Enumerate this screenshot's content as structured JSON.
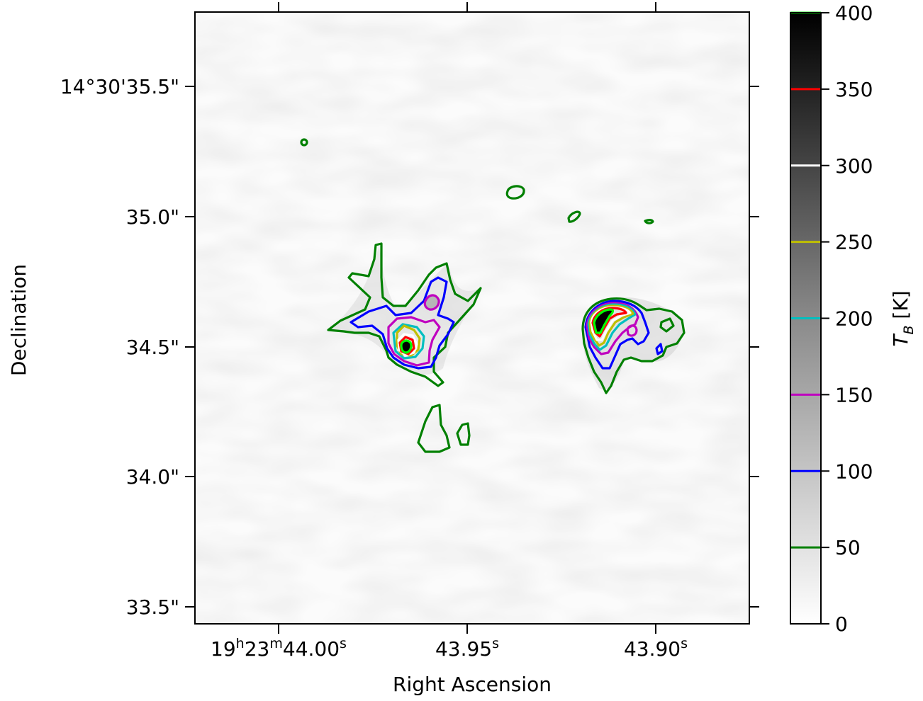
{
  "chart_data": {
    "type": "heatmap",
    "title": "",
    "xlabel": "Right Ascension",
    "ylabel": "Declination",
    "x_ticks": [
      {
        "value": 44.0,
        "label_parts": [
          "19",
          "h",
          "23",
          "m",
          "44.00",
          "s"
        ]
      },
      {
        "value": 43.95,
        "label_parts": [
          "",
          "",
          "",
          "",
          "43.95",
          "s"
        ]
      },
      {
        "value": 43.9,
        "label_parts": [
          "",
          "",
          "",
          "",
          "43.90",
          "s"
        ]
      }
    ],
    "y_ticks": [
      {
        "value": 35.5,
        "label": "14°30'35.5\""
      },
      {
        "value": 35.0,
        "label": "35.0\""
      },
      {
        "value": 34.5,
        "label": "34.5\""
      },
      {
        "value": 34.0,
        "label": "34.0\""
      },
      {
        "value": 33.5,
        "label": "33.5\""
      }
    ],
    "xlim_seconds": [
      44.0225,
      43.8725
    ],
    "ylim_arcsec": [
      33.45,
      35.8
    ],
    "colormap": "gray_r",
    "colorbar": {
      "label": "T_B [K]",
      "label_main": "T",
      "label_sub": "B",
      "label_unit": " [K]",
      "range": [
        0,
        400
      ],
      "ticks": [
        "0",
        "50",
        "100",
        "150",
        "200",
        "250",
        "300",
        "350",
        "400"
      ]
    },
    "contour_levels": [
      {
        "level": 50,
        "color": "#008000"
      },
      {
        "level": 100,
        "color": "#0000ff"
      },
      {
        "level": 150,
        "color": "#bf00bf"
      },
      {
        "level": 200,
        "color": "#00bfbf"
      },
      {
        "level": 250,
        "color": "#bfbf00"
      },
      {
        "level": 300,
        "color": "#ffffff"
      },
      {
        "level": 350,
        "color": "#ff0000"
      },
      {
        "level": 400,
        "color": "#00ff00"
      }
    ],
    "sources": [
      {
        "ra_s": 43.968,
        "dec_as": 34.5,
        "peak_K": 400
      },
      {
        "ra_s": 43.9195,
        "dec_as": 34.55,
        "peak_K": 400
      }
    ]
  }
}
